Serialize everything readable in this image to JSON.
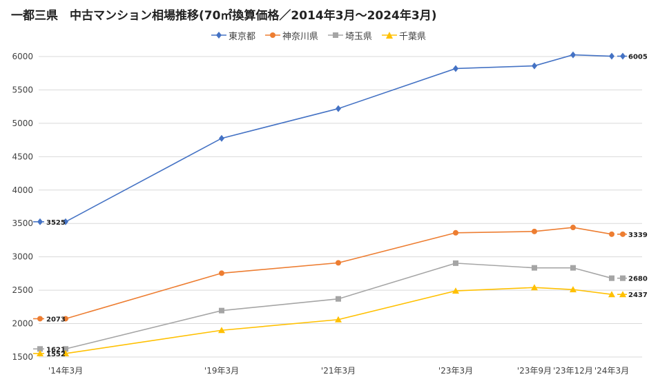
{
  "chart_data": {
    "type": "line",
    "title": "一都三県　中古マンション相場推移(70㎡換算価格／2014年3月～2024年3月)",
    "xlabel": "",
    "ylabel": "",
    "categories": [
      "'14年3月",
      "'19年3月",
      "'21年3月",
      "'23年3月",
      "'23年9月",
      "'23年12月",
      "'24年3月"
    ],
    "ylim": [
      1500,
      6000
    ],
    "yticks": [
      1500,
      2000,
      2500,
      3000,
      3500,
      4000,
      4500,
      5000,
      5500,
      6000
    ],
    "grid": true,
    "legend_position": "top",
    "series": [
      {
        "name": "東京都",
        "color": "#4472C4",
        "marker": "diamond",
        "values": [
          3525,
          4775,
          5220,
          5820,
          5860,
          6025,
          6005
        ],
        "start_label": "3525",
        "end_label": "6005"
      },
      {
        "name": "神奈川県",
        "color": "#ED7D31",
        "marker": "circle",
        "values": [
          2073,
          2755,
          2910,
          3360,
          3380,
          3440,
          3339
        ],
        "start_label": "2073",
        "end_label": "3339"
      },
      {
        "name": "埼玉県",
        "color": "#A5A5A5",
        "marker": "square",
        "values": [
          1621,
          2195,
          2370,
          2905,
          2835,
          2835,
          2680
        ],
        "start_label": "1621",
        "end_label": "2680"
      },
      {
        "name": "千葉県",
        "color": "#FFC000",
        "marker": "triangle",
        "values": [
          1552,
          1900,
          2060,
          2490,
          2540,
          2510,
          2437
        ],
        "start_label": "1552",
        "end_label": "2437"
      }
    ]
  }
}
